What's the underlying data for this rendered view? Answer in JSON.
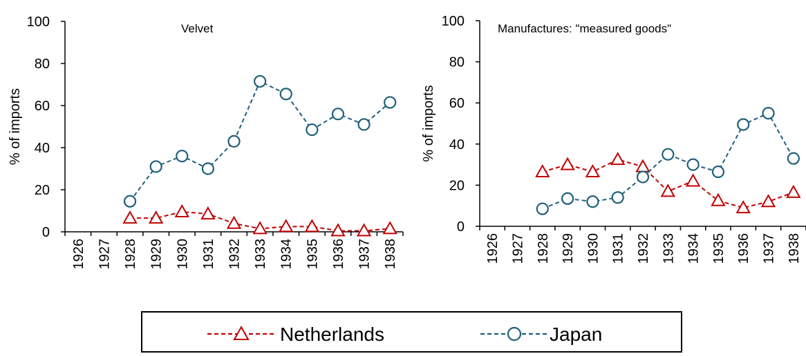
{
  "chart_data": [
    {
      "type": "line",
      "title": "Velvet",
      "y_label": "% of imports",
      "categories": [
        "1926",
        "1927",
        "1928",
        "1929",
        "1930",
        "1931",
        "1932",
        "1933",
        "1934",
        "1935",
        "1936",
        "1937",
        "1938"
      ],
      "series": [
        {
          "name": "Netherlands",
          "color": "#c00000",
          "marker": "triangle",
          "values": [
            null,
            null,
            6.5,
            6.5,
            9.5,
            8.5,
            4,
            1.5,
            2.5,
            2.5,
            0.5,
            0.5,
            1.5
          ]
        },
        {
          "name": "Japan",
          "color": "#1f5f7a",
          "marker": "circle",
          "values": [
            null,
            null,
            14.5,
            31,
            36,
            30,
            43,
            71.5,
            65.5,
            48.5,
            56,
            51,
            61.5
          ]
        }
      ],
      "ylim": [
        0,
        100
      ],
      "yticks": [
        0,
        20,
        40,
        60,
        80,
        100
      ]
    },
    {
      "type": "line",
      "title": "Manufactures: \"measured goods\"",
      "y_label": "% of imports",
      "categories": [
        "1926",
        "1927",
        "1928",
        "1929",
        "1930",
        "1931",
        "1932",
        "1933",
        "1934",
        "1935",
        "1936",
        "1937",
        "1938"
      ],
      "series": [
        {
          "name": "Netherlands",
          "color": "#c00000",
          "marker": "triangle",
          "values": [
            null,
            null,
            26.5,
            30,
            26.5,
            32.5,
            29,
            17,
            22,
            12.5,
            9,
            12,
            16.5
          ]
        },
        {
          "name": "Japan",
          "color": "#1f5f7a",
          "marker": "circle",
          "values": [
            null,
            null,
            8.5,
            13.5,
            12,
            14,
            24,
            35,
            30,
            26.5,
            49.5,
            55,
            33
          ]
        }
      ],
      "ylim": [
        0,
        100
      ],
      "yticks": [
        0,
        20,
        40,
        60,
        80,
        100
      ]
    }
  ]
}
